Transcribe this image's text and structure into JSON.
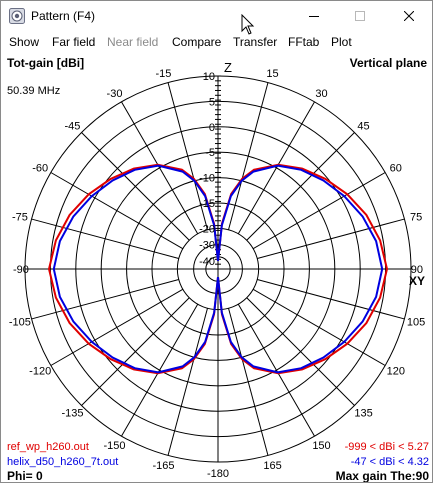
{
  "window": {
    "title": "Pattern    (F4)"
  },
  "menu": {
    "items": [
      {
        "label": "Show",
        "enabled": true
      },
      {
        "label": "Far field",
        "enabled": true
      },
      {
        "label": "Near field",
        "enabled": false
      },
      {
        "label": "Compare",
        "enabled": true
      },
      {
        "label": "Transfer",
        "enabled": true
      },
      {
        "label": "FFtab",
        "enabled": true
      },
      {
        "label": "Plot",
        "enabled": true
      }
    ]
  },
  "plot": {
    "title_left": "Tot-gain [dBi]",
    "title_right": "Vertical plane",
    "frequency": "50.39 MHz",
    "z_axis_label": "Z",
    "xy_axis_label": "XY",
    "radial_labels": [
      "10",
      "5",
      "0",
      "-5",
      "-10",
      "-15",
      "-20",
      "-30",
      "-40"
    ],
    "angle_labels": {
      "top": "0",
      "left": [
        "-15",
        "-30",
        "-45",
        "-60",
        "-75",
        "-90",
        "-105",
        "-120",
        "-135",
        "-150",
        "-165"
      ],
      "right": [
        "15",
        "30",
        "45",
        "60",
        "75",
        "90",
        "105",
        "120",
        "135",
        "150",
        "165"
      ],
      "bottom": "-180"
    },
    "legend": [
      {
        "name": "ref_wp_h260.out",
        "range": "-999 < dBi < 5.27",
        "color": "#e00000"
      },
      {
        "name": "helix_d50_h260_7t.out",
        "range": "-47 < dBi < 4.32",
        "color": "#0000e0"
      }
    ],
    "phi": "Phi= 0",
    "max_gain": "Max gain The:90"
  },
  "chart_data": {
    "type": "polar",
    "theta_deg": [
      0,
      5,
      10,
      15,
      20,
      30,
      40,
      50,
      60,
      70,
      80,
      90
    ],
    "series": [
      {
        "name": "ref_wp_h260.out",
        "color": "#e00000",
        "values_dbi": [
          -999,
          -19,
          -13,
          -9.6,
          -7.2,
          -4.3,
          -2.2,
          -0.4,
          1.4,
          3.1,
          4.4,
          5.27
        ]
      },
      {
        "name": "helix_d50_h260_7t.out",
        "color": "#0000e0",
        "values_dbi": [
          -47,
          -19.4,
          -13.4,
          -10,
          -7.6,
          -4.5,
          -2.5,
          -0.9,
          0.7,
          2.3,
          3.6,
          4.32
        ]
      }
    ]
  }
}
